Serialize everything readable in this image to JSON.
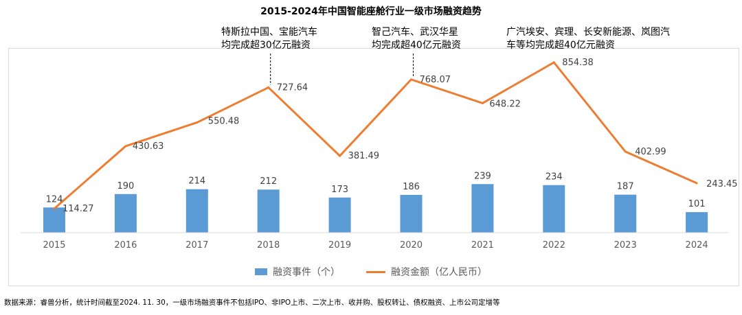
{
  "chart_data": {
    "type": "bar",
    "title": "2015-2024年中国智能座舱行业一级市场融资趋势",
    "categories": [
      "2015",
      "2016",
      "2017",
      "2018",
      "2019",
      "2020",
      "2021",
      "2022",
      "2023",
      "2024"
    ],
    "series": [
      {
        "name": "融资事件（个）",
        "type": "bar",
        "color": "#5b9bd5",
        "values": [
          124,
          190,
          214,
          212,
          173,
          186,
          239,
          234,
          187,
          101
        ]
      },
      {
        "name": "融资金额（亿人民币）",
        "type": "line",
        "color": "#ed7d31",
        "values": [
          114.27,
          430.63,
          550.48,
          727.64,
          381.49,
          768.07,
          648.22,
          854.38,
          402.99,
          243.45
        ]
      }
    ],
    "annotations": [
      {
        "category": "2018",
        "lines": [
          "特斯拉中国、宝能汽车",
          "均完成超30亿元融资"
        ]
      },
      {
        "category": "2020",
        "lines": [
          "智己汽车、武汉华星",
          "均完成超40亿元融资"
        ]
      },
      {
        "category": "2022",
        "lines": [
          "广汽埃安、宾理、长安新能源、岚图汽",
          "车等均完成超40亿元融资"
        ]
      }
    ],
    "legend_position": "bottom",
    "grid": false
  },
  "source_note": "数据来源：睿兽分析，统计时间截至2024. 11. 30，一级市场融资事件不包括IPO、非IPO上市、二次上市、收并购、股权转让、债权融资、上市公司定增等"
}
